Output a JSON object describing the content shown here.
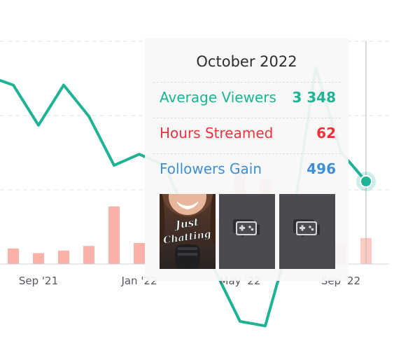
{
  "colors": {
    "viewers": "#1db394",
    "hours": "#f2303a",
    "followers": "#3d8fd6",
    "bars": "#fdb0a6",
    "bars_highlight": "#fecbc4",
    "axis_text": "#555a60"
  },
  "chart_data": {
    "type": "line+bar",
    "x_ticks": [
      "Sep '21",
      "Jan '22",
      "May '22",
      "Sep '22"
    ],
    "months": [
      "2021-07",
      "2021-08",
      "2021-09",
      "2021-10",
      "2021-11",
      "2021-12",
      "2022-01",
      "2022-02",
      "2022-03",
      "2022-04",
      "2022-05",
      "2022-06",
      "2022-07",
      "2022-08",
      "2022-09",
      "2022-10"
    ],
    "series": [
      {
        "name": "Average Viewers",
        "type": "line",
        "values": [
          3820,
          3780,
          3600,
          3780,
          3640,
          3420,
          3470,
          3420,
          3170,
          2950,
          2720,
          2700,
          3100,
          3860,
          3480,
          3348
        ]
      },
      {
        "name": "Hours Streamed",
        "type": "bar",
        "values": [
          43,
          37,
          26,
          32,
          43,
          137,
          50,
          70,
          55,
          105,
          240,
          200,
          110,
          80,
          50,
          62
        ]
      }
    ],
    "grid": true,
    "grid_style": "dashed horizontal"
  },
  "tooltip": {
    "title": "October 2022",
    "rows": [
      {
        "label": "Average Viewers",
        "value": "3 348"
      },
      {
        "label": "Hours Streamed",
        "value": "62"
      },
      {
        "label": "Followers Gain",
        "value": "496"
      }
    ],
    "thumbnails": [
      {
        "caption_line1": "Just",
        "caption_line2": "Chatting"
      },
      {
        "icon": "gamepad-icon"
      },
      {
        "icon": "gamepad-icon"
      }
    ]
  }
}
